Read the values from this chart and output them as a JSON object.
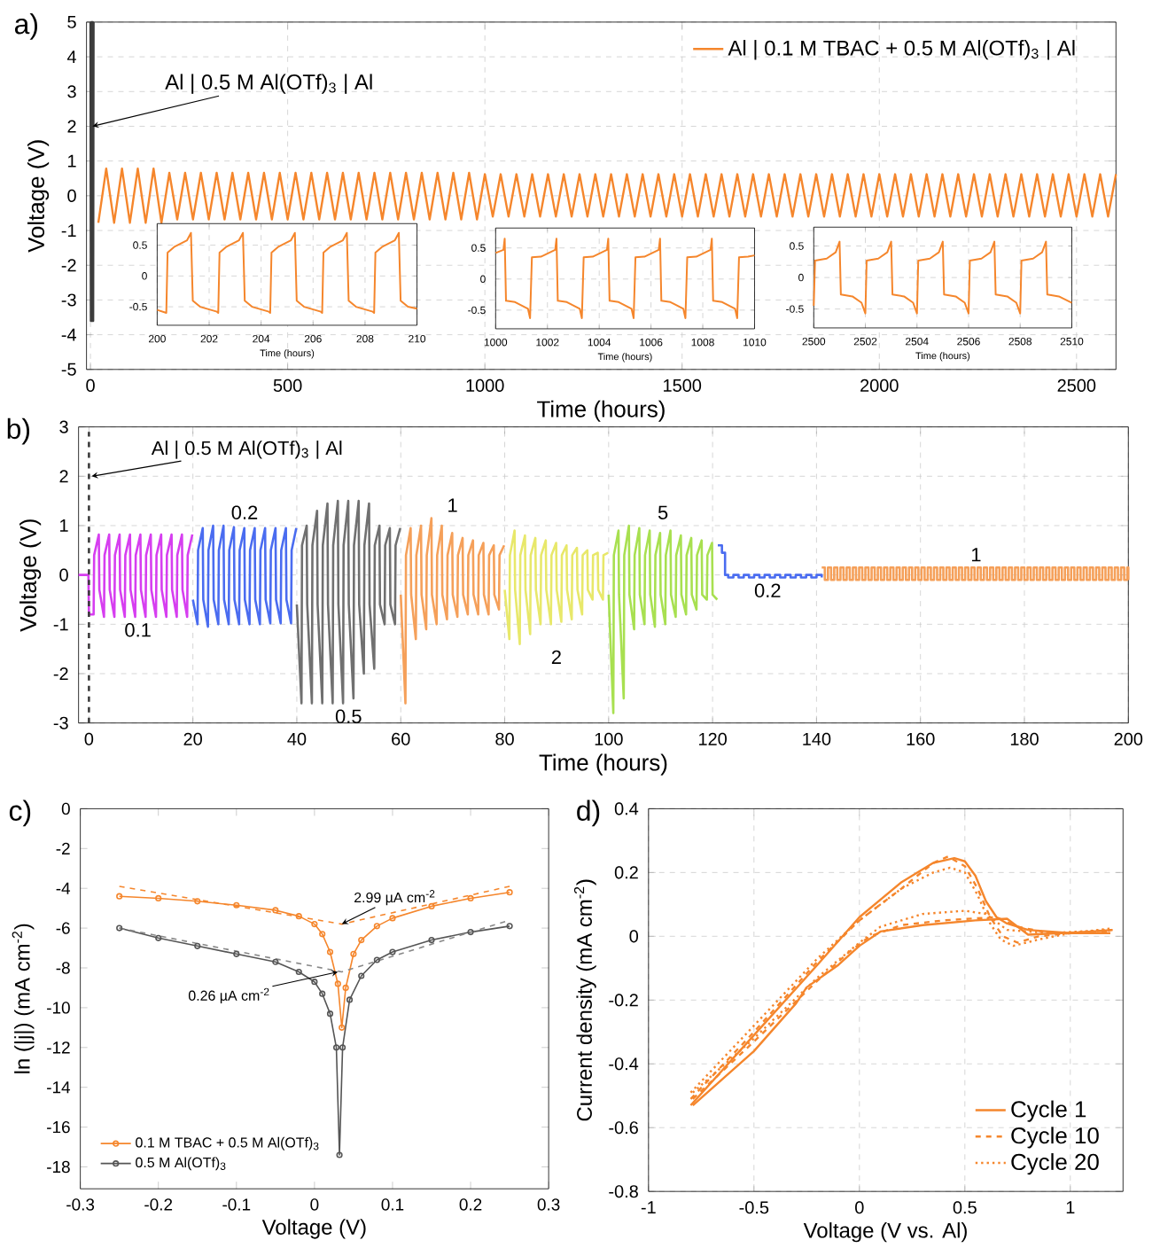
{
  "chart_data": [
    {
      "type": "line",
      "title": "a)",
      "xlabel": "Time (hours)",
      "ylabel": "Voltage (V)",
      "xlim": [
        -10,
        2600
      ],
      "ylim": [
        -5,
        5
      ],
      "xticks": [
        0,
        500,
        1000,
        1500,
        2000,
        2500
      ],
      "yticks": [
        -5,
        -4,
        -3,
        -2,
        -1,
        0,
        1,
        2,
        3,
        4,
        5
      ],
      "grid": true,
      "legend": "top right",
      "series": [
        {
          "name": "Al | 0.1 M TBAC + 0.5 M Al(OTf)$_{3}$ | Al",
          "color": "#f5862c",
          "x": [
            20,
            40,
            60,
            80,
            100,
            120,
            140,
            160,
            180,
            200,
            220,
            240,
            260,
            280,
            300,
            320,
            340,
            360,
            380,
            400,
            420,
            440,
            460,
            480,
            500,
            520,
            540,
            560,
            580,
            600,
            620,
            640,
            660,
            680,
            700,
            720,
            740,
            760,
            780,
            800,
            820,
            840,
            860,
            880,
            900,
            920,
            940,
            960,
            980,
            1000,
            1020,
            1040,
            1060,
            1080,
            1100,
            1120,
            1140,
            1160,
            1180,
            1200,
            1220,
            1240,
            1260,
            1280,
            1300,
            1320,
            1340,
            1360,
            1380,
            1400,
            1420,
            1440,
            1460,
            1480,
            1500,
            1520,
            1540,
            1560,
            1580,
            1600,
            1620,
            1640,
            1660,
            1680,
            1700,
            1720,
            1740,
            1760,
            1780,
            1800,
            1820,
            1840,
            1860,
            1880,
            1900,
            1920,
            1940,
            1960,
            1980,
            2000,
            2020,
            2040,
            2060,
            2080,
            2100,
            2120,
            2140,
            2160,
            2180,
            2200,
            2220,
            2240,
            2260,
            2280,
            2300,
            2320,
            2340,
            2360,
            2380,
            2400,
            2420,
            2440,
            2460,
            2480,
            2500,
            2520,
            2540,
            2560,
            2580,
            2600
          ],
          "values": [
            -0.78,
            0.78,
            -0.78,
            0.78,
            -0.78,
            0.78,
            -0.78,
            0.78,
            -0.78,
            0.66,
            -0.68,
            0.66,
            -0.68,
            0.66,
            -0.68,
            0.66,
            -0.68,
            0.66,
            -0.68,
            0.66,
            -0.68,
            0.66,
            -0.68,
            0.66,
            -0.68,
            0.66,
            -0.68,
            0.66,
            -0.68,
            0.66,
            -0.68,
            0.66,
            -0.68,
            0.66,
            -0.68,
            0.66,
            -0.68,
            0.66,
            -0.68,
            0.66,
            -0.68,
            0.66,
            -0.68,
            0.66,
            -0.68,
            0.66,
            -0.68,
            0.66,
            -0.68,
            0.62,
            -0.6,
            0.62,
            -0.6,
            0.62,
            -0.6,
            0.62,
            -0.6,
            0.62,
            -0.6,
            0.62,
            -0.6,
            0.62,
            -0.6,
            0.62,
            -0.6,
            0.62,
            -0.6,
            0.62,
            -0.6,
            0.62,
            -0.6,
            0.62,
            -0.6,
            0.62,
            -0.6,
            0.62,
            -0.6,
            0.62,
            -0.6,
            0.62,
            -0.6,
            0.62,
            -0.6,
            0.62,
            -0.6,
            0.62,
            -0.6,
            0.62,
            -0.6,
            0.62,
            -0.6,
            0.62,
            -0.6,
            0.62,
            -0.6,
            0.62,
            -0.6,
            0.62,
            -0.6,
            0.62,
            -0.6,
            0.62,
            -0.6,
            0.62,
            -0.6,
            0.62,
            -0.6,
            0.62,
            -0.6,
            0.62,
            -0.6,
            0.62,
            -0.6,
            0.62,
            -0.6,
            0.62,
            -0.6,
            0.62,
            -0.6,
            0.62,
            -0.6,
            0.62,
            -0.6,
            0.62,
            -0.6,
            0.62,
            -0.6,
            0.62,
            -0.6,
            0.62
          ]
        },
        {
          "color": "#3c3c3c",
          "x": [
            0,
            1,
            2,
            3,
            4,
            5,
            6,
            7,
            8
          ],
          "values": [
            5,
            -3.6,
            5,
            -3.6,
            5,
            -3.6,
            5,
            -3.6,
            5
          ]
        }
      ],
      "annotations": [
        {
          "text": "Al | 0.5 M Al(OTf)$_{3}$ | Al",
          "x": 5,
          "y": 2
        }
      ]
    },
    {
      "type": "line",
      "xlabel": "Time (hours)",
      "xlim": [
        200,
        210
      ],
      "ylim": [
        -0.8,
        0.85
      ],
      "xticks": [
        200,
        202,
        204,
        206,
        208,
        210
      ],
      "yticks": [
        -0.5,
        0,
        0.5
      ],
      "grid": true,
      "series": [
        {
          "color": "#f5862c",
          "x": [
            200,
            200.35,
            200.4,
            200.65,
            201.15,
            201.3,
            201.37,
            201.65,
            202.3,
            202.35,
            202.4,
            202.65,
            203.15,
            203.3,
            203.37,
            203.65,
            204.3,
            204.35,
            204.4,
            204.65,
            205.15,
            205.3,
            205.37,
            205.65,
            206.3,
            206.35,
            206.4,
            206.65,
            207.15,
            207.3,
            207.37,
            207.65,
            208.3,
            208.35,
            208.4,
            208.65,
            209.15,
            209.3,
            209.37,
            209.65,
            210
          ],
          "values": [
            -0.55,
            -0.6,
            0.38,
            0.47,
            0.58,
            0.7,
            -0.4,
            -0.5,
            -0.58,
            -0.6,
            0.38,
            0.47,
            0.58,
            0.7,
            -0.4,
            -0.5,
            -0.58,
            -0.6,
            0.38,
            0.47,
            0.58,
            0.7,
            -0.4,
            -0.5,
            -0.58,
            -0.6,
            0.38,
            0.47,
            0.58,
            0.7,
            -0.4,
            -0.5,
            -0.58,
            -0.6,
            0.38,
            0.47,
            0.58,
            0.7,
            -0.4,
            -0.5,
            -0.53
          ]
        }
      ]
    },
    {
      "type": "line",
      "xlabel": "Time (hours)",
      "xlim": [
        1000,
        1010
      ],
      "ylim": [
        -0.8,
        0.82
      ],
      "xticks": [
        1000,
        1002,
        1004,
        1006,
        1008,
        1010
      ],
      "yticks": [
        -0.5,
        0,
        0.5
      ],
      "grid": true,
      "series": [
        {
          "color": "#f5862c",
          "x": [
            1000,
            1000.3,
            1000.35,
            1000.4,
            1000.75,
            1001.25,
            1001.33,
            1001.4,
            1001.75,
            1002.3,
            1002.35,
            1002.4,
            1002.75,
            1003.25,
            1003.33,
            1003.4,
            1003.75,
            1004.3,
            1004.35,
            1004.4,
            1004.75,
            1005.25,
            1005.33,
            1005.4,
            1005.75,
            1006.3,
            1006.35,
            1006.4,
            1006.75,
            1007.25,
            1007.33,
            1007.4,
            1007.75,
            1008.3,
            1008.35,
            1008.4,
            1008.75,
            1009.25,
            1009.33,
            1009.4,
            1009.75,
            1010
          ],
          "values": [
            0.42,
            0.47,
            0.65,
            -0.35,
            -0.37,
            -0.48,
            -0.63,
            0.35,
            0.36,
            0.47,
            0.65,
            -0.35,
            -0.37,
            -0.48,
            -0.63,
            0.35,
            0.36,
            0.47,
            0.65,
            -0.35,
            -0.37,
            -0.48,
            -0.63,
            0.35,
            0.36,
            0.47,
            0.65,
            -0.35,
            -0.37,
            -0.48,
            -0.63,
            0.35,
            0.36,
            0.47,
            0.65,
            -0.35,
            -0.37,
            -0.48,
            -0.63,
            0.35,
            0.36,
            0.38
          ]
        }
      ]
    },
    {
      "type": "line",
      "xlabel": "Time (hours)",
      "xlim": [
        2500,
        2510
      ],
      "ylim": [
        -0.8,
        0.8
      ],
      "xticks": [
        2500,
        2502,
        2504,
        2506,
        2508,
        2510
      ],
      "yticks": [
        -0.5,
        0,
        0.5
      ],
      "grid": true,
      "series": [
        {
          "color": "#f5862c",
          "x": [
            2500,
            2500.05,
            2500.5,
            2500.85,
            2501,
            2501.05,
            2501.5,
            2501.85,
            2502,
            2502.05,
            2502.5,
            2502.85,
            2503,
            2503.05,
            2503.5,
            2503.85,
            2504,
            2504.05,
            2504.5,
            2504.85,
            2505,
            2505.05,
            2505.5,
            2505.85,
            2506,
            2506.05,
            2506.5,
            2506.85,
            2507,
            2507.05,
            2507.5,
            2507.85,
            2508,
            2508.05,
            2508.5,
            2508.85,
            2509,
            2509.05,
            2509.5,
            2510
          ],
          "values": [
            -0.45,
            0.27,
            0.3,
            0.4,
            0.57,
            -0.27,
            -0.3,
            -0.4,
            -0.57,
            0.27,
            0.3,
            0.4,
            0.57,
            -0.27,
            -0.3,
            -0.4,
            -0.57,
            0.27,
            0.3,
            0.4,
            0.57,
            -0.27,
            -0.3,
            -0.4,
            -0.57,
            0.27,
            0.3,
            0.4,
            0.57,
            -0.27,
            -0.3,
            -0.4,
            -0.57,
            0.27,
            0.3,
            0.4,
            0.57,
            -0.27,
            -0.3,
            -0.4
          ]
        }
      ]
    },
    {
      "type": "line",
      "title": "b)",
      "xlabel": "Time (hours)",
      "ylabel": "Voltage (V)",
      "xlim": [
        -2,
        200
      ],
      "ylim": [
        -3,
        3
      ],
      "xticks": [
        0,
        20,
        40,
        60,
        80,
        100,
        120,
        140,
        160,
        180,
        200
      ],
      "yticks": [
        -3,
        -2,
        -1,
        0,
        1,
        2,
        3
      ],
      "grid": true,
      "series": [
        {
          "name": "0.1",
          "color": "#d63ef0",
          "x": [
            -2,
            -0.1,
            0,
            0.9,
            1,
            1.9,
            2,
            2.9,
            3,
            3.9,
            4,
            4.9,
            5,
            5.9,
            6,
            6.9,
            7,
            7.9,
            8,
            8.9,
            9,
            9.9,
            10,
            10.9,
            11,
            11.9,
            12,
            12.9,
            13,
            13.9,
            14,
            14.9,
            15,
            15.9,
            16,
            16.9,
            17,
            17.9,
            18,
            18.9,
            19,
            19.9
          ],
          "values": [
            0,
            0,
            -0.8,
            -0.8,
            0.4,
            0.82,
            -0.3,
            -0.85,
            0.4,
            0.82,
            -0.3,
            -0.85,
            0.4,
            0.82,
            -0.3,
            -0.85,
            0.4,
            0.82,
            -0.3,
            -0.85,
            0.4,
            0.82,
            -0.3,
            -0.85,
            0.4,
            0.82,
            -0.3,
            -0.85,
            0.4,
            0.82,
            -0.3,
            -0.85,
            0.4,
            0.82,
            -0.3,
            -0.85,
            0.4,
            0.82,
            -0.3,
            -0.85,
            0.4,
            0.82
          ]
        },
        {
          "name": "0.2",
          "color": "#4a6cf0",
          "x": [
            20,
            20.9,
            21,
            21.9,
            22,
            22.9,
            23,
            23.9,
            24,
            24.9,
            25,
            25.9,
            26,
            26.9,
            27,
            27.9,
            28,
            28.9,
            29,
            29.9,
            30,
            30.9,
            31,
            31.9,
            32,
            32.9,
            33,
            33.9,
            34,
            34.9,
            35,
            35.9,
            36,
            36.9,
            37,
            37.9,
            38,
            38.9,
            39,
            39.9
          ],
          "values": [
            -0.5,
            -1.0,
            0.5,
            0.95,
            -0.5,
            -1.05,
            0.5,
            1.0,
            -0.5,
            -1.0,
            0.5,
            1.0,
            -0.5,
            -1.0,
            0.5,
            0.97,
            -0.5,
            -1.0,
            0.5,
            0.95,
            -0.5,
            -1.0,
            0.5,
            0.95,
            -0.5,
            -1.0,
            0.5,
            0.95,
            -0.5,
            -0.98,
            0.5,
            0.95,
            -0.5,
            -0.98,
            0.5,
            0.95,
            -0.5,
            -0.98,
            0.5,
            0.95
          ]
        },
        {
          "name": "0.5",
          "color": "#707070",
          "x": [
            40,
            40.9,
            41,
            41.9,
            42,
            42.9,
            43,
            43.9,
            44,
            44.9,
            45,
            45.9,
            46,
            46.9,
            47,
            47.9,
            48,
            48.9,
            49,
            49.9,
            50,
            50.9,
            51,
            51.9,
            52,
            52.9,
            53,
            53.9,
            54,
            54.9,
            55,
            55.9,
            56,
            56.9,
            57,
            57.9,
            58,
            58.9,
            59,
            59.9
          ],
          "values": [
            -0.6,
            -2.6,
            0.6,
            1.0,
            -0.6,
            -2.6,
            0.6,
            1.3,
            -0.6,
            -2.6,
            0.6,
            1.45,
            -0.6,
            -2.6,
            0.6,
            1.5,
            -0.6,
            -2.6,
            0.6,
            1.5,
            -0.6,
            -2.5,
            0.6,
            1.5,
            -0.6,
            -2.0,
            0.6,
            1.45,
            -0.6,
            -1.9,
            0.6,
            1.0,
            -0.6,
            -1.0,
            0.6,
            0.95,
            -0.6,
            -1.0,
            0.6,
            0.95
          ]
        },
        {
          "name": "1",
          "color": "#f5a05a",
          "x": [
            60,
            60.9,
            61,
            61.9,
            62,
            62.9,
            63,
            63.9,
            64,
            64.9,
            65,
            65.9,
            66,
            66.9,
            67,
            67.9,
            68,
            68.9,
            69,
            69.9,
            70,
            70.9,
            71,
            71.9,
            72,
            72.9,
            73,
            73.9,
            74,
            74.9,
            75,
            75.9,
            76,
            76.9,
            77,
            77.9,
            78,
            78.9,
            79,
            79.9
          ],
          "values": [
            -0.4,
            -2.6,
            0.4,
            0.95,
            -0.4,
            -1.3,
            0.4,
            1.0,
            -0.4,
            -1.1,
            0.4,
            1.15,
            -0.4,
            -1.0,
            0.4,
            1.0,
            -0.4,
            -0.9,
            0.4,
            0.85,
            -0.4,
            -0.85,
            0.4,
            0.75,
            -0.4,
            -0.8,
            0.4,
            0.7,
            -0.4,
            -0.8,
            0.4,
            0.65,
            -0.4,
            -0.8,
            0.4,
            0.6,
            -0.4,
            -0.7,
            0.4,
            0.6
          ]
        },
        {
          "name": "2",
          "color": "#e8e86a",
          "x": [
            80,
            80.9,
            81,
            81.9,
            82,
            82.9,
            83,
            83.9,
            84,
            84.9,
            85,
            85.9,
            86,
            86.9,
            87,
            87.9,
            88,
            88.9,
            89,
            89.9,
            90,
            90.9,
            91,
            91.9,
            92,
            92.9,
            93,
            93.9,
            94,
            94.9,
            95,
            95.9,
            96,
            96.9,
            97,
            97.9,
            98,
            98.9,
            99,
            99.9
          ],
          "values": [
            -0.3,
            -1.3,
            0.4,
            0.9,
            -0.3,
            -1.4,
            0.4,
            0.8,
            -0.3,
            -1.2,
            0.4,
            0.75,
            -0.3,
            -1.0,
            0.4,
            0.7,
            -0.3,
            -1.0,
            0.4,
            0.65,
            -0.3,
            -0.95,
            0.4,
            0.6,
            -0.3,
            -0.9,
            0.4,
            0.55,
            -0.3,
            -0.8,
            0.4,
            0.5,
            -0.3,
            -0.5,
            0.4,
            0.45,
            -0.3,
            -0.5,
            0.4,
            0.45
          ]
        },
        {
          "name": "5",
          "color": "#a8e050",
          "x": [
            100,
            100.9,
            101,
            101.9,
            102,
            102.9,
            103,
            103.9,
            104,
            104.9,
            105,
            105.9,
            106,
            106.9,
            107,
            107.9,
            108,
            108.9,
            109,
            109.9,
            110,
            110.9,
            111,
            111.9,
            112,
            112.9,
            113,
            113.9,
            114,
            114.9,
            115,
            115.9,
            116,
            116.9,
            117,
            117.9,
            118,
            118.9,
            119,
            119.9,
            120,
            120.9
          ],
          "values": [
            -0.4,
            -2.8,
            0.4,
            0.9,
            -0.4,
            -2.5,
            0.4,
            1.0,
            -0.4,
            -1.1,
            0.4,
            0.95,
            -0.4,
            -1.0,
            0.4,
            0.9,
            -0.4,
            -1.05,
            0.4,
            0.85,
            -0.4,
            -1.0,
            0.4,
            0.9,
            -0.4,
            -0.85,
            0.4,
            0.8,
            -0.4,
            -0.8,
            0.4,
            0.75,
            -0.4,
            -0.7,
            0.4,
            0.7,
            -0.4,
            -0.5,
            0.4,
            0.65,
            -0.4,
            -0.5
          ]
        },
        {
          "name": "0.2",
          "type": "step",
          "color": "#4a6cf0",
          "x": [
            121,
            121.8,
            122.4,
            123,
            124,
            125,
            126,
            127,
            128,
            129,
            130,
            131,
            132,
            133,
            134,
            135,
            136,
            137,
            138,
            139,
            140,
            141
          ],
          "values": [
            0.6,
            0.45,
            0,
            -0.05,
            0,
            -0.05,
            0,
            -0.05,
            0,
            -0.05,
            0,
            -0.05,
            0,
            -0.05,
            0,
            -0.05,
            0,
            -0.05,
            0,
            -0.05,
            0,
            -0.05
          ]
        },
        {
          "name": "1",
          "type": "step",
          "color": "#f5a05a",
          "x": [
            141,
            141.6,
            142.2,
            142.8,
            143.4,
            144,
            144.6,
            145.2,
            145.8,
            146.4,
            147,
            147.6,
            148.2,
            148.8,
            149.4,
            150,
            150.6,
            151.2,
            151.8,
            152.4,
            153,
            153.6,
            154.2,
            154.8,
            155.4,
            156,
            156.6,
            157.2,
            157.8,
            158.4,
            159,
            159.6,
            160.2,
            160.8,
            161.4,
            162,
            162.6,
            163.2,
            163.8,
            164.4,
            165,
            165.6,
            166.2,
            166.8,
            167.4,
            168,
            168.6,
            169.2,
            169.8,
            170.4,
            171,
            171.6,
            172.2,
            172.8,
            173.4,
            174,
            174.6,
            175.2,
            175.8,
            176.4,
            177,
            177.6,
            178.2,
            178.8,
            179.4,
            180,
            180.6,
            181.2,
            181.8,
            182.4,
            183,
            183.6,
            184.2,
            184.8,
            185.4,
            186,
            186.6,
            187.2,
            187.8,
            188.4,
            189,
            189.6,
            190.2,
            190.8,
            191.4,
            192,
            192.6,
            193.2,
            193.8,
            194.4,
            195,
            195.6,
            196.2,
            196.8,
            197.4,
            198,
            198.6,
            199.2,
            199.8,
            200
          ],
          "values": [
            0.15,
            -0.1,
            0.15,
            -0.1,
            0.15,
            -0.1,
            0.15,
            -0.1,
            0.15,
            -0.1,
            0.15,
            -0.1,
            0.15,
            -0.1,
            0.15,
            -0.1,
            0.15,
            -0.1,
            0.15,
            -0.1,
            0.15,
            -0.1,
            0.15,
            -0.1,
            0.15,
            -0.1,
            0.15,
            -0.1,
            0.15,
            -0.1,
            0.15,
            -0.1,
            0.15,
            -0.1,
            0.15,
            -0.1,
            0.15,
            -0.1,
            0.15,
            -0.1,
            0.15,
            -0.1,
            0.15,
            -0.1,
            0.15,
            -0.1,
            0.15,
            -0.1,
            0.15,
            -0.1,
            0.15,
            -0.1,
            0.15,
            -0.1,
            0.15,
            -0.1,
            0.15,
            -0.1,
            0.15,
            -0.1,
            0.15,
            -0.1,
            0.15,
            -0.1,
            0.15,
            -0.1,
            0.15,
            -0.1,
            0.15,
            -0.1,
            0.15,
            -0.1,
            0.15,
            -0.1,
            0.15,
            -0.1,
            0.15,
            -0.1,
            0.15,
            -0.1,
            0.15,
            -0.1,
            0.15,
            -0.1,
            0.15,
            -0.1,
            0.15,
            -0.1,
            0.15,
            -0.1,
            0.15,
            -0.1,
            0.15,
            -0.1,
            0.15,
            -0.1,
            0.15,
            -0.1,
            0.15,
            -0.1
          ]
        },
        {
          "color": "#3c3c3c",
          "line_style": "dashed",
          "x": [
            0,
            0
          ],
          "values": [
            -3,
            2.9
          ]
        }
      ],
      "annotations": [
        {
          "text": "Al | 0.5 M Al(OTf)$_{3}$ | Al",
          "x": 0.5,
          "y": 2.0
        }
      ]
    },
    {
      "type": "line",
      "title": "c)",
      "xlabel": "Voltage (V)",
      "ylabel": "ln (|j|) (mA cm$^{-2}$)",
      "xlim": [
        -0.3,
        0.3
      ],
      "ylim": [
        -19.1,
        0
      ],
      "xticks": [
        -0.3,
        -0.2,
        -0.1,
        0,
        0.1,
        0.2,
        0.3
      ],
      "yticks": [
        -18,
        -16,
        -14,
        -12,
        -10,
        -8,
        -6,
        -4,
        -2,
        0
      ],
      "legend": "bottom left",
      "series": [
        {
          "name": "0.1 M TBAC + 0.5 M Al(OTf)$_{3}$",
          "color": "#f5862c",
          "marker": "circle",
          "x": [
            -0.25,
            -0.2,
            -0.15,
            -0.1,
            -0.05,
            -0.02,
            0,
            0.01,
            0.02,
            0.03,
            0.035,
            0.04,
            0.05,
            0.06,
            0.08,
            0.1,
            0.15,
            0.2,
            0.25
          ],
          "values": [
            -4.4,
            -4.5,
            -4.65,
            -4.85,
            -5.1,
            -5.4,
            -5.8,
            -6.3,
            -7.2,
            -8.8,
            -11,
            -9,
            -7.3,
            -6.6,
            -5.9,
            -5.5,
            -4.9,
            -4.5,
            -4.2
          ]
        },
        {
          "name": "0.5 M Al(OTf)$_{3}$",
          "color": "#555555",
          "marker": "circle",
          "x": [
            -0.25,
            -0.2,
            -0.15,
            -0.1,
            -0.05,
            -0.02,
            0,
            0.01,
            0.02,
            0.028,
            0.032,
            0.036,
            0.045,
            0.06,
            0.08,
            0.1,
            0.15,
            0.2,
            0.25
          ],
          "values": [
            -6,
            -6.5,
            -6.9,
            -7.3,
            -7.7,
            -8.2,
            -8.7,
            -9.3,
            -10.3,
            -12,
            -17.4,
            -12,
            -9.6,
            -8.4,
            -7.6,
            -7.2,
            -6.6,
            -6.2,
            -5.9
          ]
        },
        {
          "color": "#f5862c",
          "line_style": "dashed",
          "x": [
            -0.25,
            0.035,
            0.25
          ],
          "values": [
            -3.9,
            -5.8,
            -3.9
          ]
        },
        {
          "color": "#888888",
          "line_style": "dashed",
          "x": [
            -0.25,
            0.035,
            0.25
          ],
          "values": [
            -6,
            -8.2,
            -5.6
          ]
        }
      ],
      "annotations": [
        {
          "text": "2.99 µA cm$^{-2}$",
          "x": 0.035,
          "y": -5.8
        },
        {
          "text": "0.26 µA cm$^{-2}$",
          "x": 0.03,
          "y": -8.2
        }
      ]
    },
    {
      "type": "line",
      "title": "d)",
      "xlabel": "Voltage (V vs. Al)",
      "ylabel": "Current density (mA cm$^{-2}$)",
      "xlim": [
        -1,
        1.25
      ],
      "ylim": [
        -0.8,
        0.4
      ],
      "xticks": [
        -1,
        -0.5,
        0,
        0.5,
        1
      ],
      "yticks": [
        -0.8,
        -0.6,
        -0.4,
        -0.2,
        0,
        0.2,
        0.4
      ],
      "grid": true,
      "legend": "bottom right",
      "series": [
        {
          "name": "Cycle 1",
          "color": "#f5862c",
          "line_style": "solid",
          "x": [
            -0.8,
            -0.5,
            -0.2,
            0,
            0.2,
            0.35,
            0.45,
            0.5,
            0.55,
            0.6,
            0.65,
            0.7,
            0.8,
            1.0,
            1.2
          ],
          "values": [
            -0.53,
            -0.31,
            -0.09,
            0.06,
            0.17,
            0.23,
            0.245,
            0.235,
            0.19,
            0.11,
            0.06,
            0.04,
            0.02,
            0.01,
            0.02
          ]
        },
        {
          "color": "#f5862c",
          "line_style": "solid",
          "x": [
            -0.79,
            -0.5,
            -0.3,
            -0.25,
            -0.1,
            0,
            0.1,
            0.3,
            0.55,
            0.7,
            0.75,
            0.8,
            0.95,
            1.19
          ],
          "values": [
            -0.53,
            -0.36,
            -0.21,
            -0.16,
            -0.09,
            -0.03,
            0.015,
            0.035,
            0.05,
            0.055,
            0.03,
            0.005,
            0.01,
            0.01
          ]
        },
        {
          "name": "Cycle 10",
          "color": "#f5862c",
          "line_style": "dashed",
          "x": [
            -0.8,
            -0.5,
            -0.2,
            0,
            0.2,
            0.35,
            0.42,
            0.5,
            0.56,
            0.62,
            0.68,
            0.75,
            0.85,
            1.0,
            1.2
          ],
          "values": [
            -0.51,
            -0.3,
            -0.08,
            0.05,
            0.15,
            0.23,
            0.25,
            0.22,
            0.15,
            0.06,
            0.0,
            -0.02,
            0.0,
            0.01,
            0.02
          ]
        },
        {
          "color": "#f5862c",
          "line_style": "dashed",
          "x": [
            -0.79,
            -0.5,
            -0.2,
            -0.05,
            0.05,
            0.2,
            0.4,
            0.65,
            0.75,
            0.9,
            1.19
          ],
          "values": [
            -0.51,
            -0.33,
            -0.14,
            -0.05,
            0.0,
            0.035,
            0.05,
            0.06,
            0.03,
            0.01,
            0.015
          ]
        },
        {
          "name": "Cycle 20",
          "color": "#f5862c",
          "line_style": "dotted",
          "x": [
            -0.8,
            -0.5,
            -0.2,
            0,
            0.2,
            0.35,
            0.43,
            0.5,
            0.56,
            0.62,
            0.67,
            0.73,
            0.85,
            1.0,
            1.2
          ],
          "values": [
            -0.49,
            -0.28,
            -0.07,
            0.05,
            0.15,
            0.2,
            0.215,
            0.2,
            0.13,
            0.04,
            -0.01,
            -0.03,
            -0.01,
            0.01,
            0.025
          ]
        },
        {
          "color": "#f5862c",
          "line_style": "dotted",
          "x": [
            -0.79,
            -0.5,
            -0.2,
            0,
            0.1,
            0.3,
            0.5,
            0.6,
            0.7,
            0.9,
            1.19
          ],
          "values": [
            -0.49,
            -0.32,
            -0.13,
            -0.02,
            0.03,
            0.07,
            0.08,
            0.07,
            0.02,
            0.01,
            0.02
          ]
        }
      ]
    }
  ]
}
